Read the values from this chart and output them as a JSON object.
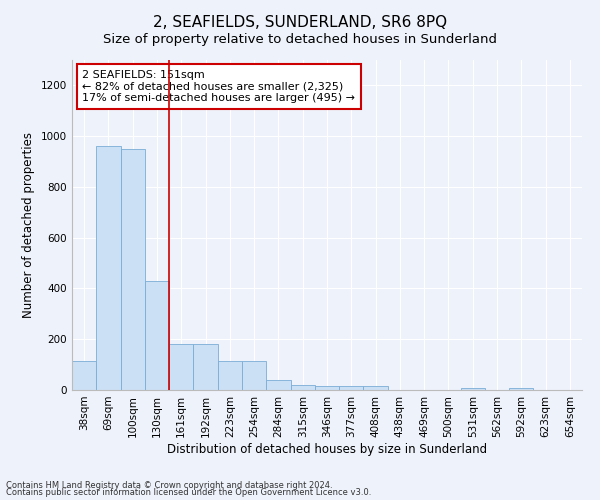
{
  "title": "2, SEAFIELDS, SUNDERLAND, SR6 8PQ",
  "subtitle": "Size of property relative to detached houses in Sunderland",
  "xlabel": "Distribution of detached houses by size in Sunderland",
  "ylabel": "Number of detached properties",
  "categories": [
    "38sqm",
    "69sqm",
    "100sqm",
    "130sqm",
    "161sqm",
    "192sqm",
    "223sqm",
    "254sqm",
    "284sqm",
    "315sqm",
    "346sqm",
    "377sqm",
    "408sqm",
    "438sqm",
    "469sqm",
    "500sqm",
    "531sqm",
    "562sqm",
    "592sqm",
    "623sqm",
    "654sqm"
  ],
  "values": [
    115,
    960,
    950,
    430,
    180,
    180,
    115,
    115,
    40,
    20,
    15,
    15,
    15,
    0,
    0,
    0,
    7,
    0,
    7,
    0,
    0
  ],
  "bar_color": "#cce0f5",
  "bar_edge_color": "#7badd6",
  "annotation_line1": "2 SEAFIELDS: 151sqm",
  "annotation_line2": "← 82% of detached houses are smaller (2,325)",
  "annotation_line3": "17% of semi-detached houses are larger (495) →",
  "annotation_box_color": "#ffffff",
  "annotation_box_edge_color": "#cc0000",
  "vline_color": "#cc0000",
  "vline_x": 3.5,
  "ylim": [
    0,
    1300
  ],
  "yticks": [
    0,
    200,
    400,
    600,
    800,
    1000,
    1200
  ],
  "footnote1": "Contains HM Land Registry data © Crown copyright and database right 2024.",
  "footnote2": "Contains public sector information licensed under the Open Government Licence v3.0.",
  "background_color": "#eef2fa",
  "grid_color": "#ffffff",
  "title_fontsize": 11,
  "subtitle_fontsize": 9.5,
  "axis_label_fontsize": 8.5,
  "tick_fontsize": 7.5,
  "annotation_fontsize": 8,
  "footnote_fontsize": 6
}
